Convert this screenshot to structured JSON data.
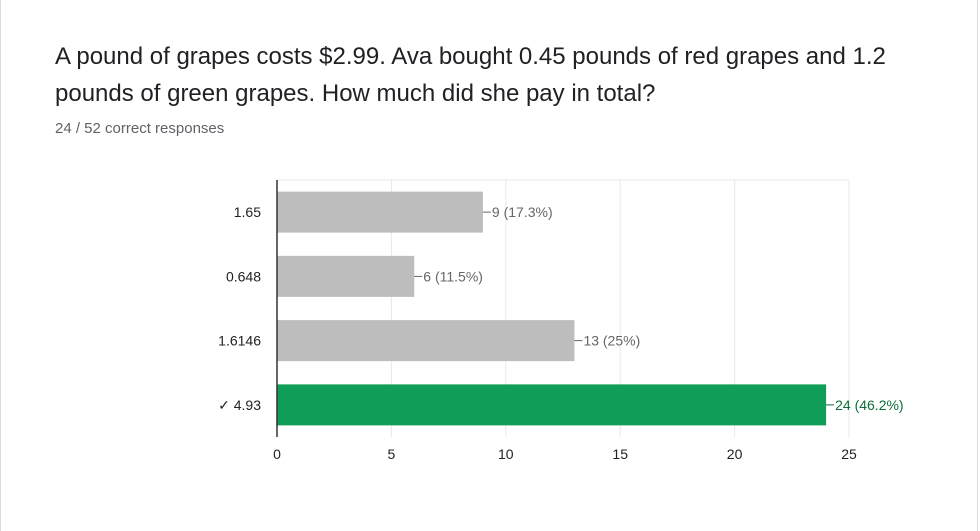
{
  "question": {
    "title": "A pound of grapes costs $2.99. Ava bought 0.45 pounds of red grapes and 1.2 pounds of green grapes. How much did she pay in total?",
    "summary": "24 / 52 correct responses"
  },
  "colors": {
    "bar_default": "#bdbdbd",
    "bar_correct": "#0f9d58",
    "label_default": "#666666",
    "label_correct": "#0b6e3a",
    "grid": "#e8e8e8",
    "axis": "#333333"
  },
  "chart_data": {
    "type": "bar",
    "orientation": "horizontal",
    "categories": [
      "1.65",
      "0.648",
      "1.6146",
      "✓ 4.93"
    ],
    "values": [
      9,
      6,
      13,
      24
    ],
    "data_labels": [
      "9 (17.3%)",
      "6 (11.5%)",
      "13 (25%)",
      "24 (46.2%)"
    ],
    "correct_index": 3,
    "xlim": [
      0,
      25
    ],
    "xticks": [
      0,
      5,
      10,
      15,
      20,
      25
    ],
    "grid": true,
    "legend": "none"
  }
}
